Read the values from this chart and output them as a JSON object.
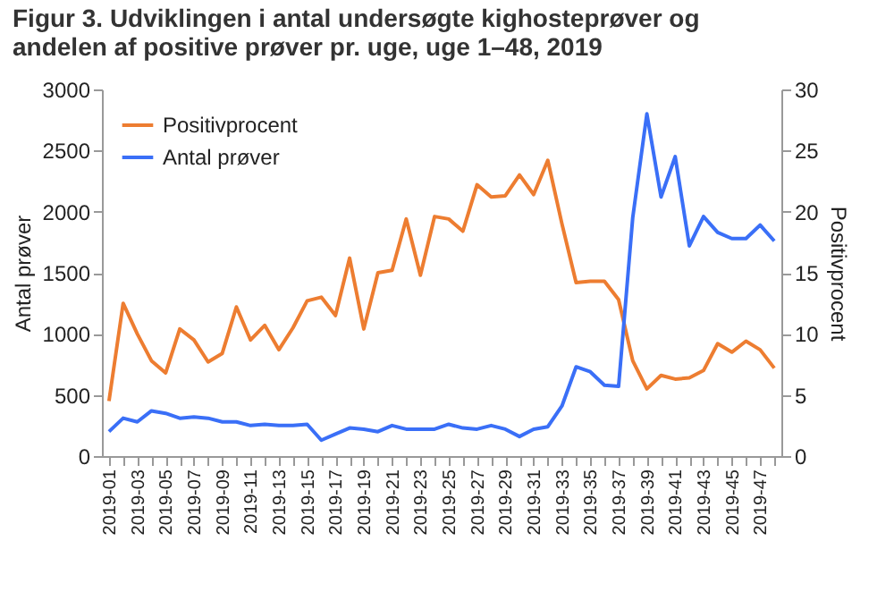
{
  "chart_data": {
    "type": "line",
    "title": "Figur 3. Udviklingen i antal undersøgte kighosteprøver og andelen af positive prøver pr. uge, uge 1–48, 2019",
    "ylabel": "Antal prøver",
    "y2label": "Positivprocent",
    "categories": [
      "2019-01",
      null,
      "2019-03",
      null,
      "2019-05",
      null,
      "2019-07",
      null,
      "2019-09",
      null,
      "2019-11",
      null,
      "2019-13",
      null,
      "2019-15",
      null,
      "2019-17",
      null,
      "2019-19",
      null,
      "2019-21",
      null,
      "2019-23",
      null,
      "2019-25",
      null,
      "2019-27",
      null,
      "2019-29",
      null,
      "2019-31",
      null,
      "2019-33",
      null,
      "2019-35",
      null,
      "2019-37",
      null,
      "2019-39",
      null,
      "2019-41",
      null,
      "2019-43",
      null,
      "2019-45",
      null,
      "2019-47",
      null
    ],
    "series": [
      {
        "name": "Positivprocent",
        "color": "#ed7d31",
        "axis": "y2",
        "values": [
          4.5,
          12.5,
          10,
          7.8,
          6.8,
          10.4,
          9.5,
          7.7,
          8.4,
          12.2,
          9.5,
          10.7,
          8.7,
          10.5,
          12.7,
          13,
          11.5,
          16.2,
          10.4,
          15,
          15.2,
          19.4,
          14.8,
          19.6,
          19.4,
          18.4,
          22.2,
          21.2,
          21.3,
          23,
          21.4,
          24.2,
          19,
          14.2,
          14.3,
          14.3,
          12.8,
          7.8,
          5.5,
          6.6,
          6.3,
          6.4,
          7,
          9.2,
          8.5,
          9.4,
          8.7,
          7.2
        ]
      },
      {
        "name": "Antal prøver",
        "color": "#3a6ff7",
        "axis": "y",
        "values": [
          200,
          310,
          280,
          370,
          350,
          310,
          320,
          310,
          280,
          280,
          250,
          260,
          250,
          250,
          260,
          130,
          180,
          230,
          220,
          200,
          250,
          220,
          220,
          220,
          260,
          230,
          220,
          250,
          220,
          160,
          220,
          240,
          410,
          730,
          690,
          580,
          570,
          1950,
          2800,
          2120,
          2450,
          1720,
          1960,
          1830,
          1780,
          1780,
          1890,
          1760
        ]
      }
    ],
    "ylim": [
      0,
      3000
    ],
    "yticks": [
      0,
      500,
      1000,
      1500,
      2000,
      2500,
      3000
    ],
    "y2lim": [
      0,
      30
    ],
    "y2ticks": [
      0,
      5,
      10,
      15,
      20,
      25,
      30
    ],
    "grid": false,
    "legend": "top left",
    "marker": "none",
    "line_style": "solid"
  }
}
